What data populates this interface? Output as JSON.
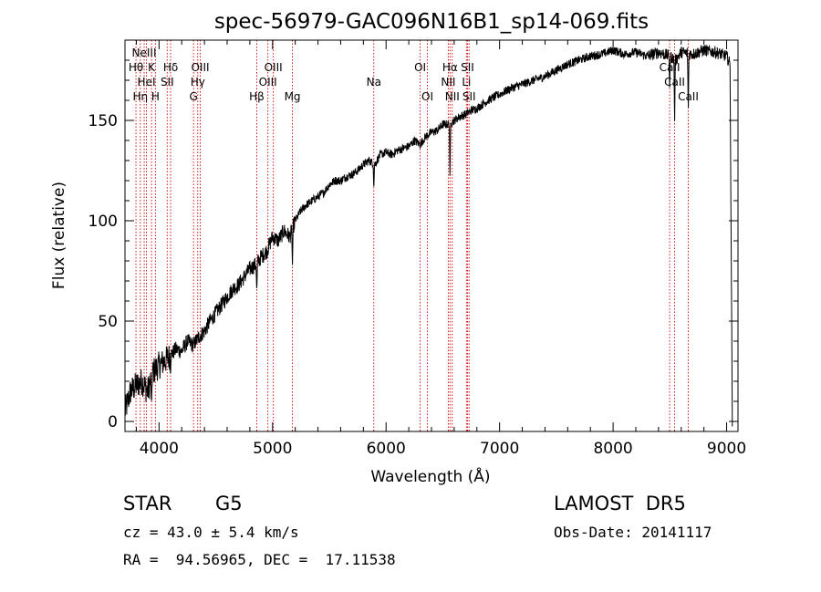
{
  "chart_data": {
    "type": "line",
    "title": "spec-56979-GAC096N16B1_sp14-069.fits",
    "xlabel": "Wavelength (Å)",
    "ylabel": "Flux (relative)",
    "xlim": [
      3700,
      9100
    ],
    "ylim": [
      -5,
      190
    ],
    "xticks": [
      4000,
      5000,
      6000,
      7000,
      8000,
      9000
    ],
    "yticks": [
      0,
      50,
      100,
      150
    ],
    "grid": false,
    "series": [
      {
        "x": [
          3700,
          3750,
          3800,
          3850,
          3900,
          3950,
          4000,
          4050,
          4100,
          4150,
          4200,
          4250,
          4300,
          4350,
          4400,
          4450,
          4500,
          4550,
          4600,
          4650,
          4700,
          4750,
          4800,
          4850,
          4900,
          4950,
          5000,
          5050,
          5100,
          5150,
          5200,
          5250,
          5300,
          5350,
          5400,
          5450,
          5500,
          5550,
          5600,
          5650,
          5700,
          5750,
          5800,
          5850,
          5900,
          5950,
          6000,
          6050,
          6100,
          6150,
          6200,
          6250,
          6300,
          6350,
          6400,
          6450,
          6500,
          6550,
          6600,
          6650,
          6700,
          6750,
          6800,
          6900,
          7000,
          7100,
          7200,
          7300,
          7400,
          7500,
          7600,
          7700,
          7800,
          7900,
          8000,
          8100,
          8200,
          8300,
          8400,
          8500,
          8550,
          8600,
          8700,
          8800,
          8900,
          9000,
          9030,
          9050
        ],
        "y": [
          5,
          15,
          18,
          20,
          15,
          25,
          28,
          30,
          33,
          36,
          35,
          40,
          38,
          42,
          45,
          50,
          54,
          58,
          62,
          66,
          68,
          72,
          76,
          78,
          82,
          85,
          92,
          90,
          95,
          92,
          100,
          105,
          108,
          110,
          112,
          114,
          118,
          120,
          120,
          122,
          123,
          125,
          128,
          130,
          128,
          133,
          134,
          133,
          135,
          136,
          137,
          140,
          138,
          142,
          144,
          145,
          148,
          148,
          150,
          152,
          153,
          155,
          156,
          160,
          163,
          166,
          168,
          170,
          172,
          175,
          178,
          180,
          182,
          183,
          185,
          183,
          184,
          182,
          184,
          182,
          180,
          184,
          183,
          185,
          184,
          182,
          178,
          0
        ]
      }
    ],
    "absorption_dips": [
      {
        "x": 3934,
        "y": 8
      },
      {
        "x": 4101,
        "y": 22
      },
      {
        "x": 4861,
        "y": 64
      },
      {
        "x": 5175,
        "y": 78
      },
      {
        "x": 5892,
        "y": 116
      },
      {
        "x": 6563,
        "y": 120
      },
      {
        "x": 8498,
        "y": 165
      },
      {
        "x": 8542,
        "y": 147
      },
      {
        "x": 8662,
        "y": 154
      }
    ],
    "line_markers": [
      {
        "x": 3797,
        "label": "Hθ",
        "row": 1
      },
      {
        "x": 3835,
        "label": "Hη",
        "row": 3
      },
      {
        "x": 3869,
        "label": "NeIII",
        "row": 0
      },
      {
        "x": 3889,
        "label": "HeI",
        "row": 2
      },
      {
        "x": 3934,
        "label": "K",
        "row": 1
      },
      {
        "x": 3968,
        "label": "H",
        "row": 3
      },
      {
        "x": 4072,
        "label": "SII",
        "row": 2
      },
      {
        "x": 4102,
        "label": "Hδ",
        "row": 1
      },
      {
        "x": 4304,
        "label": "G",
        "row": 3
      },
      {
        "x": 4341,
        "label": "Hγ",
        "row": 2
      },
      {
        "x": 4363,
        "label": "OIII",
        "row": 1
      },
      {
        "x": 4861,
        "label": "Hβ",
        "row": 3
      },
      {
        "x": 4959,
        "label": "OIII",
        "row": 2
      },
      {
        "x": 5007,
        "label": "OIII",
        "row": 1
      },
      {
        "x": 5175,
        "label": "Mg",
        "row": 3
      },
      {
        "x": 5892,
        "label": "Na",
        "row": 2
      },
      {
        "x": 6300,
        "label": "OI",
        "row": 1
      },
      {
        "x": 6364,
        "label": "OI",
        "row": 3
      },
      {
        "x": 6548,
        "label": "NII",
        "row": 2
      },
      {
        "x": 6563,
        "label": "Hα",
        "row": 1
      },
      {
        "x": 6583,
        "label": "NII",
        "row": 3
      },
      {
        "x": 6708,
        "label": "Li",
        "row": 2
      },
      {
        "x": 6717,
        "label": "SII",
        "row": 1
      },
      {
        "x": 6731,
        "label": "SII",
        "row": 3
      },
      {
        "x": 8498,
        "label": "CaII",
        "row": 1
      },
      {
        "x": 8542,
        "label": "CaII",
        "row": 2
      },
      {
        "x": 8662,
        "label": "CaII",
        "row": 3
      }
    ],
    "marker_color": "#cc0000",
    "line_color": "#000000"
  },
  "info": {
    "object_class": "STAR",
    "subclass": "G5",
    "survey": "LAMOST  DR5",
    "cz": "cz = 43.0 ± 5.4 km/s",
    "obs_date": "Obs-Date: 20141117",
    "coords": "RA =  94.56965, DEC =  17.11538"
  }
}
